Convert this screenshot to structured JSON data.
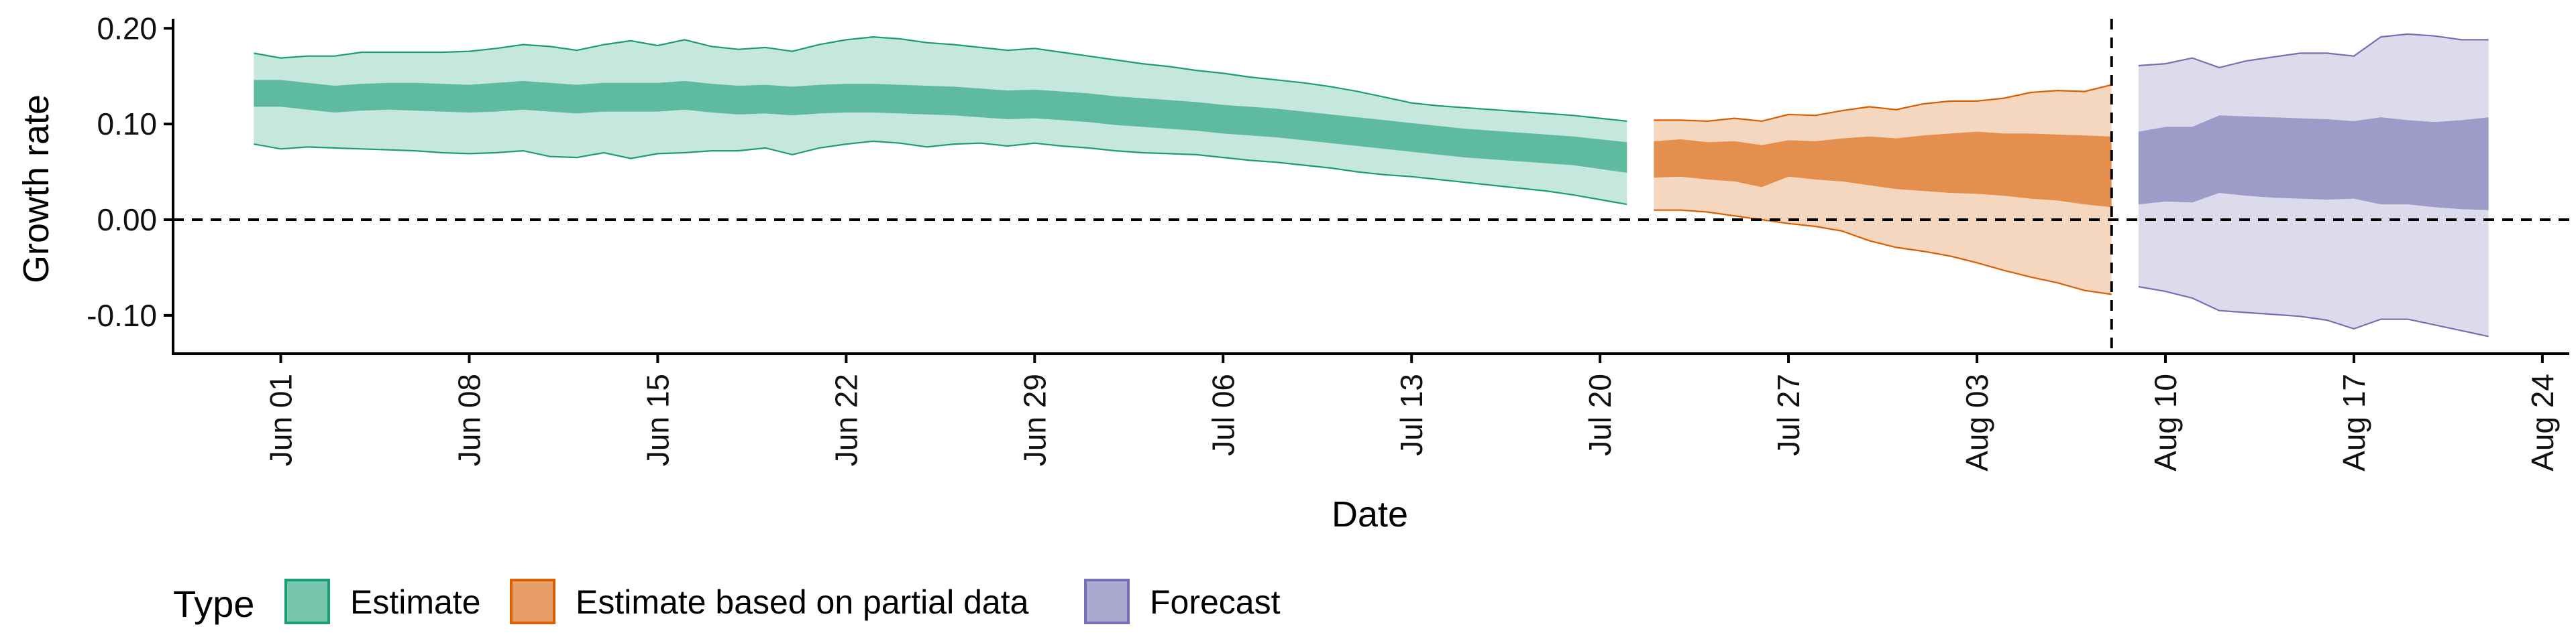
{
  "chart_data": {
    "type": "area",
    "xlabel": "Date",
    "ylabel": "Growth rate",
    "ylim": [
      -0.14,
      0.21
    ],
    "xlim": [
      "2020-05-28",
      "2020-08-25"
    ],
    "y_ticks": [
      0.2,
      0.1,
      0.0,
      -0.1
    ],
    "y_tick_labels": [
      "0.20",
      "0.10",
      "0.00",
      "-0.10"
    ],
    "x_ticks": [
      "2020-06-01",
      "2020-06-08",
      "2020-06-15",
      "2020-06-22",
      "2020-06-29",
      "2020-07-06",
      "2020-07-13",
      "2020-07-20",
      "2020-07-27",
      "2020-08-03",
      "2020-08-10",
      "2020-08-17",
      "2020-08-24"
    ],
    "x_tick_labels": [
      "Jun 01",
      "Jun 08",
      "Jun 15",
      "Jun 22",
      "Jun 29",
      "Jul 06",
      "Jul 13",
      "Jul 20",
      "Jul 27",
      "Aug 03",
      "Aug 10",
      "Aug 17",
      "Aug 24"
    ],
    "reference_lines": {
      "horizontal_y": 0.0,
      "vertical_x": "2020-08-08",
      "style": "dashed"
    },
    "grid": false,
    "legend": {
      "title": "Type",
      "position": "bottom",
      "entries": [
        "Estimate",
        "Estimate based on partial data",
        "Forecast"
      ]
    },
    "series": [
      {
        "name": "Estimate",
        "color": "#1b9e77",
        "x": [
          "2020-05-31",
          "2020-06-01",
          "2020-06-02",
          "2020-06-03",
          "2020-06-04",
          "2020-06-05",
          "2020-06-06",
          "2020-06-07",
          "2020-06-08",
          "2020-06-09",
          "2020-06-10",
          "2020-06-11",
          "2020-06-12",
          "2020-06-13",
          "2020-06-14",
          "2020-06-15",
          "2020-06-16",
          "2020-06-17",
          "2020-06-18",
          "2020-06-19",
          "2020-06-20",
          "2020-06-21",
          "2020-06-22",
          "2020-06-23",
          "2020-06-24",
          "2020-06-25",
          "2020-06-26",
          "2020-06-27",
          "2020-06-28",
          "2020-06-29",
          "2020-06-30",
          "2020-07-01",
          "2020-07-02",
          "2020-07-03",
          "2020-07-04",
          "2020-07-05",
          "2020-07-06",
          "2020-07-07",
          "2020-07-08",
          "2020-07-09",
          "2020-07-10",
          "2020-07-11",
          "2020-07-12",
          "2020-07-13",
          "2020-07-14",
          "2020-07-15",
          "2020-07-16",
          "2020-07-17",
          "2020-07-18",
          "2020-07-19",
          "2020-07-20",
          "2020-07-21"
        ],
        "upper90": [
          0.174,
          0.169,
          0.171,
          0.171,
          0.175,
          0.175,
          0.175,
          0.175,
          0.176,
          0.179,
          0.183,
          0.181,
          0.177,
          0.183,
          0.187,
          0.182,
          0.188,
          0.181,
          0.178,
          0.18,
          0.176,
          0.183,
          0.188,
          0.191,
          0.189,
          0.185,
          0.183,
          0.18,
          0.177,
          0.179,
          0.175,
          0.171,
          0.167,
          0.163,
          0.16,
          0.156,
          0.153,
          0.149,
          0.146,
          0.143,
          0.139,
          0.134,
          0.128,
          0.122,
          0.119,
          0.117,
          0.115,
          0.113,
          0.111,
          0.109,
          0.106,
          0.103
        ],
        "upper50": [
          0.146,
          0.146,
          0.143,
          0.14,
          0.142,
          0.143,
          0.143,
          0.142,
          0.141,
          0.143,
          0.145,
          0.143,
          0.141,
          0.143,
          0.143,
          0.143,
          0.145,
          0.142,
          0.14,
          0.141,
          0.139,
          0.141,
          0.142,
          0.142,
          0.141,
          0.14,
          0.139,
          0.137,
          0.135,
          0.136,
          0.134,
          0.132,
          0.129,
          0.127,
          0.125,
          0.123,
          0.12,
          0.118,
          0.116,
          0.113,
          0.11,
          0.107,
          0.104,
          0.101,
          0.098,
          0.095,
          0.093,
          0.091,
          0.089,
          0.087,
          0.084,
          0.081
        ],
        "lower50": [
          0.118,
          0.118,
          0.115,
          0.112,
          0.114,
          0.115,
          0.114,
          0.113,
          0.112,
          0.113,
          0.115,
          0.113,
          0.111,
          0.113,
          0.113,
          0.113,
          0.115,
          0.112,
          0.11,
          0.111,
          0.109,
          0.111,
          0.112,
          0.112,
          0.111,
          0.11,
          0.109,
          0.107,
          0.105,
          0.106,
          0.104,
          0.102,
          0.099,
          0.097,
          0.095,
          0.093,
          0.09,
          0.088,
          0.086,
          0.083,
          0.08,
          0.077,
          0.074,
          0.071,
          0.068,
          0.065,
          0.063,
          0.061,
          0.059,
          0.057,
          0.053,
          0.049
        ],
        "lower90": [
          0.079,
          0.074,
          0.076,
          0.075,
          0.074,
          0.073,
          0.072,
          0.07,
          0.069,
          0.07,
          0.072,
          0.066,
          0.065,
          0.07,
          0.064,
          0.069,
          0.07,
          0.072,
          0.072,
          0.075,
          0.068,
          0.075,
          0.079,
          0.082,
          0.08,
          0.076,
          0.079,
          0.08,
          0.077,
          0.08,
          0.077,
          0.075,
          0.072,
          0.07,
          0.069,
          0.068,
          0.065,
          0.062,
          0.06,
          0.057,
          0.054,
          0.05,
          0.047,
          0.045,
          0.042,
          0.039,
          0.036,
          0.033,
          0.03,
          0.026,
          0.021,
          0.016
        ]
      },
      {
        "name": "Estimate based on partial data",
        "color": "#d95f02",
        "x": [
          "2020-07-22",
          "2020-07-23",
          "2020-07-24",
          "2020-07-25",
          "2020-07-26",
          "2020-07-27",
          "2020-07-28",
          "2020-07-29",
          "2020-07-30",
          "2020-07-31",
          "2020-08-01",
          "2020-08-02",
          "2020-08-03",
          "2020-08-04",
          "2020-08-05",
          "2020-08-06",
          "2020-08-07",
          "2020-08-08"
        ],
        "upper90": [
          0.104,
          0.104,
          0.103,
          0.106,
          0.103,
          0.11,
          0.109,
          0.114,
          0.118,
          0.115,
          0.121,
          0.124,
          0.124,
          0.127,
          0.133,
          0.135,
          0.134,
          0.141
        ],
        "upper50": [
          0.082,
          0.084,
          0.081,
          0.082,
          0.078,
          0.083,
          0.082,
          0.085,
          0.087,
          0.085,
          0.088,
          0.09,
          0.092,
          0.09,
          0.09,
          0.089,
          0.088,
          0.087
        ],
        "lower50": [
          0.044,
          0.045,
          0.042,
          0.04,
          0.034,
          0.045,
          0.042,
          0.04,
          0.036,
          0.032,
          0.03,
          0.028,
          0.027,
          0.025,
          0.022,
          0.02,
          0.016,
          0.013
        ],
        "lower90": [
          0.01,
          0.01,
          0.008,
          0.004,
          0.0,
          -0.004,
          -0.007,
          -0.012,
          -0.022,
          -0.029,
          -0.033,
          -0.038,
          -0.045,
          -0.053,
          -0.06,
          -0.066,
          -0.074,
          -0.078
        ]
      },
      {
        "name": "Forecast",
        "color": "#7570b3",
        "x": [
          "2020-08-09",
          "2020-08-10",
          "2020-08-11",
          "2020-08-12",
          "2020-08-13",
          "2020-08-14",
          "2020-08-15",
          "2020-08-16",
          "2020-08-17",
          "2020-08-18",
          "2020-08-19",
          "2020-08-20",
          "2020-08-21",
          "2020-08-22"
        ],
        "upper90": [
          0.161,
          0.163,
          0.169,
          0.159,
          0.166,
          0.17,
          0.174,
          0.174,
          0.171,
          0.191,
          0.194,
          0.192,
          0.188,
          0.188
        ],
        "upper50": [
          0.092,
          0.097,
          0.097,
          0.109,
          0.108,
          0.107,
          0.106,
          0.105,
          0.103,
          0.107,
          0.104,
          0.102,
          0.104,
          0.107
        ],
        "lower50": [
          0.016,
          0.019,
          0.018,
          0.028,
          0.025,
          0.023,
          0.022,
          0.021,
          0.022,
          0.016,
          0.016,
          0.013,
          0.011,
          0.01
        ],
        "lower90": [
          -0.07,
          -0.075,
          -0.082,
          -0.095,
          -0.097,
          -0.099,
          -0.101,
          -0.105,
          -0.114,
          -0.104,
          -0.104,
          -0.11,
          -0.116,
          -0.122
        ]
      }
    ]
  }
}
